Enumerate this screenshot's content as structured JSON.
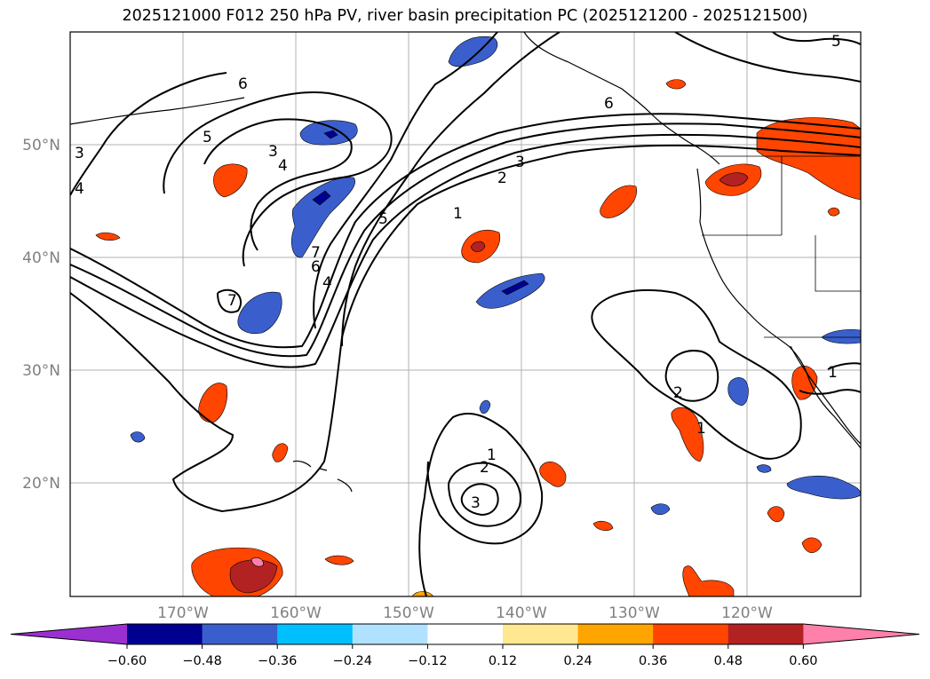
{
  "title": "2025121000 F012 250 hPa PV, river basin precipitation PC (2025121200 - 2025121500)",
  "latitude_labels": [
    "50°N",
    "40°N",
    "30°N",
    "20°N"
  ],
  "longitude_labels": [
    "170°W",
    "160°W",
    "150°W",
    "140°W",
    "130°W",
    "120°W"
  ],
  "colorbar": {
    "ticks": [
      "−0.60",
      "−0.48",
      "−0.36",
      "−0.24",
      "−0.12",
      "0.12",
      "0.24",
      "0.36",
      "0.48",
      "0.60"
    ],
    "colors": [
      "#9b30d0",
      "#000090",
      "#3a5fcd",
      "#00bfff",
      "#b0e2ff",
      "#ffffff",
      "#ffe88f",
      "#ffa500",
      "#ff4500",
      "#b22222",
      "#ff80ab"
    ]
  },
  "contour_labels": {
    "west": [
      "6",
      "5",
      "3",
      "4",
      "3",
      "4",
      "7",
      "7",
      "6",
      "4",
      "5"
    ],
    "jet": [
      "1",
      "2",
      "3"
    ],
    "ne": [
      "5",
      "6"
    ],
    "pacific": [
      "1",
      "2",
      "3"
    ],
    "east": [
      "2",
      "1",
      "1"
    ]
  },
  "colors": {
    "land_line": "#000000",
    "grid": "#b0b0b0",
    "contour": "#000000"
  }
}
